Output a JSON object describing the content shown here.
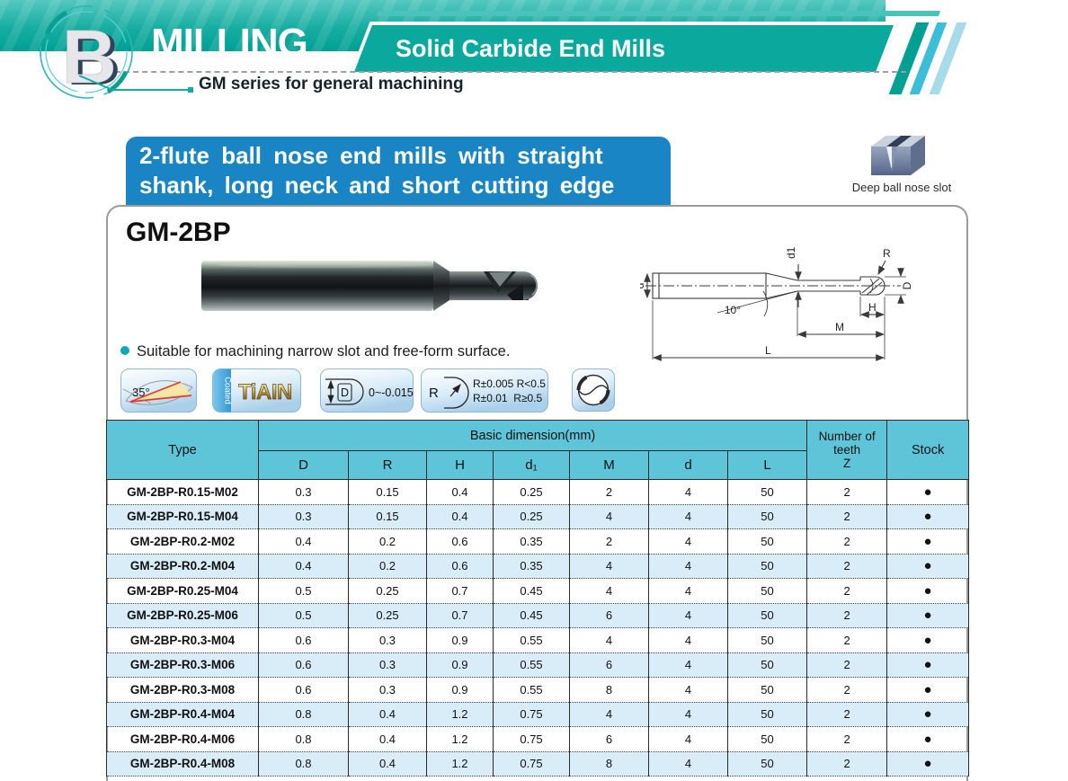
{
  "header": {
    "logo_letter": "B",
    "section": "MILLING",
    "subsection": "Solid Carbide End Mills",
    "series": "GM series for general machining"
  },
  "banner": {
    "line1": "2-flute ball nose end mills with straight",
    "line2": "shank, long neck and short cutting edge"
  },
  "application": {
    "caption": "Deep ball nose slot"
  },
  "product": {
    "model": "GM-2BP",
    "feature": "Suitable for machining narrow slot and free-form surface.",
    "badges": {
      "helix_angle": "35°",
      "coated_label": "Coated",
      "coating": "TiAIN",
      "d_label": "D",
      "d_tolerance": "0~-0.015",
      "r_label": "R",
      "r_tol_line1": "R±0.005 R<0.5",
      "r_tol_line2": "R±0.01  R≥0.5"
    },
    "drawing_labels": {
      "d": "d",
      "angle": "10°",
      "d1": "d1",
      "r": "R",
      "big_d": "D",
      "h": "H",
      "m": "M",
      "l": "L"
    }
  },
  "table": {
    "col_type": "Type",
    "col_basic": "Basic dimension(mm)",
    "dim_cols": [
      "D",
      "R",
      "H",
      "d₁",
      "M",
      "d",
      "L"
    ],
    "col_teeth": "Number of\nteeth\nZ",
    "col_stock": "Stock",
    "rows": [
      {
        "type": "GM-2BP-R0.15-M02",
        "dims": [
          "0.3",
          "0.15",
          "0.4",
          "0.25",
          "2",
          "4",
          "50"
        ],
        "z": "2",
        "stock": "●"
      },
      {
        "type": "GM-2BP-R0.15-M04",
        "dims": [
          "0.3",
          "0.15",
          "0.4",
          "0.25",
          "4",
          "4",
          "50"
        ],
        "z": "2",
        "stock": "●"
      },
      {
        "type": "GM-2BP-R0.2-M02",
        "dims": [
          "0.4",
          "0.2",
          "0.6",
          "0.35",
          "2",
          "4",
          "50"
        ],
        "z": "2",
        "stock": "●"
      },
      {
        "type": "GM-2BP-R0.2-M04",
        "dims": [
          "0.4",
          "0.2",
          "0.6",
          "0.35",
          "4",
          "4",
          "50"
        ],
        "z": "2",
        "stock": "●"
      },
      {
        "type": "GM-2BP-R0.25-M04",
        "dims": [
          "0.5",
          "0.25",
          "0.7",
          "0.45",
          "4",
          "4",
          "50"
        ],
        "z": "2",
        "stock": "●"
      },
      {
        "type": "GM-2BP-R0.25-M06",
        "dims": [
          "0.5",
          "0.25",
          "0.7",
          "0.45",
          "6",
          "4",
          "50"
        ],
        "z": "2",
        "stock": "●"
      },
      {
        "type": "GM-2BP-R0.3-M04",
        "dims": [
          "0.6",
          "0.3",
          "0.9",
          "0.55",
          "4",
          "4",
          "50"
        ],
        "z": "2",
        "stock": "●"
      },
      {
        "type": "GM-2BP-R0.3-M06",
        "dims": [
          "0.6",
          "0.3",
          "0.9",
          "0.55",
          "6",
          "4",
          "50"
        ],
        "z": "2",
        "stock": "●"
      },
      {
        "type": "GM-2BP-R0.3-M08",
        "dims": [
          "0.6",
          "0.3",
          "0.9",
          "0.55",
          "8",
          "4",
          "50"
        ],
        "z": "2",
        "stock": "●"
      },
      {
        "type": "GM-2BP-R0.4-M04",
        "dims": [
          "0.8",
          "0.4",
          "1.2",
          "0.75",
          "4",
          "4",
          "50"
        ],
        "z": "2",
        "stock": "●"
      },
      {
        "type": "GM-2BP-R0.4-M06",
        "dims": [
          "0.8",
          "0.4",
          "1.2",
          "0.75",
          "6",
          "4",
          "50"
        ],
        "z": "2",
        "stock": "●"
      },
      {
        "type": "GM-2BP-R0.4-M08",
        "dims": [
          "0.8",
          "0.4",
          "1.2",
          "0.75",
          "8",
          "4",
          "50"
        ],
        "z": "2",
        "stock": "●"
      }
    ]
  },
  "colors": {
    "teal": "#00a79b",
    "banner_blue": "#1a85c5",
    "table_header_cyan": "#5ec5d8",
    "row_alt_blue": "#d9edf8",
    "stock_dot": "#000000"
  }
}
